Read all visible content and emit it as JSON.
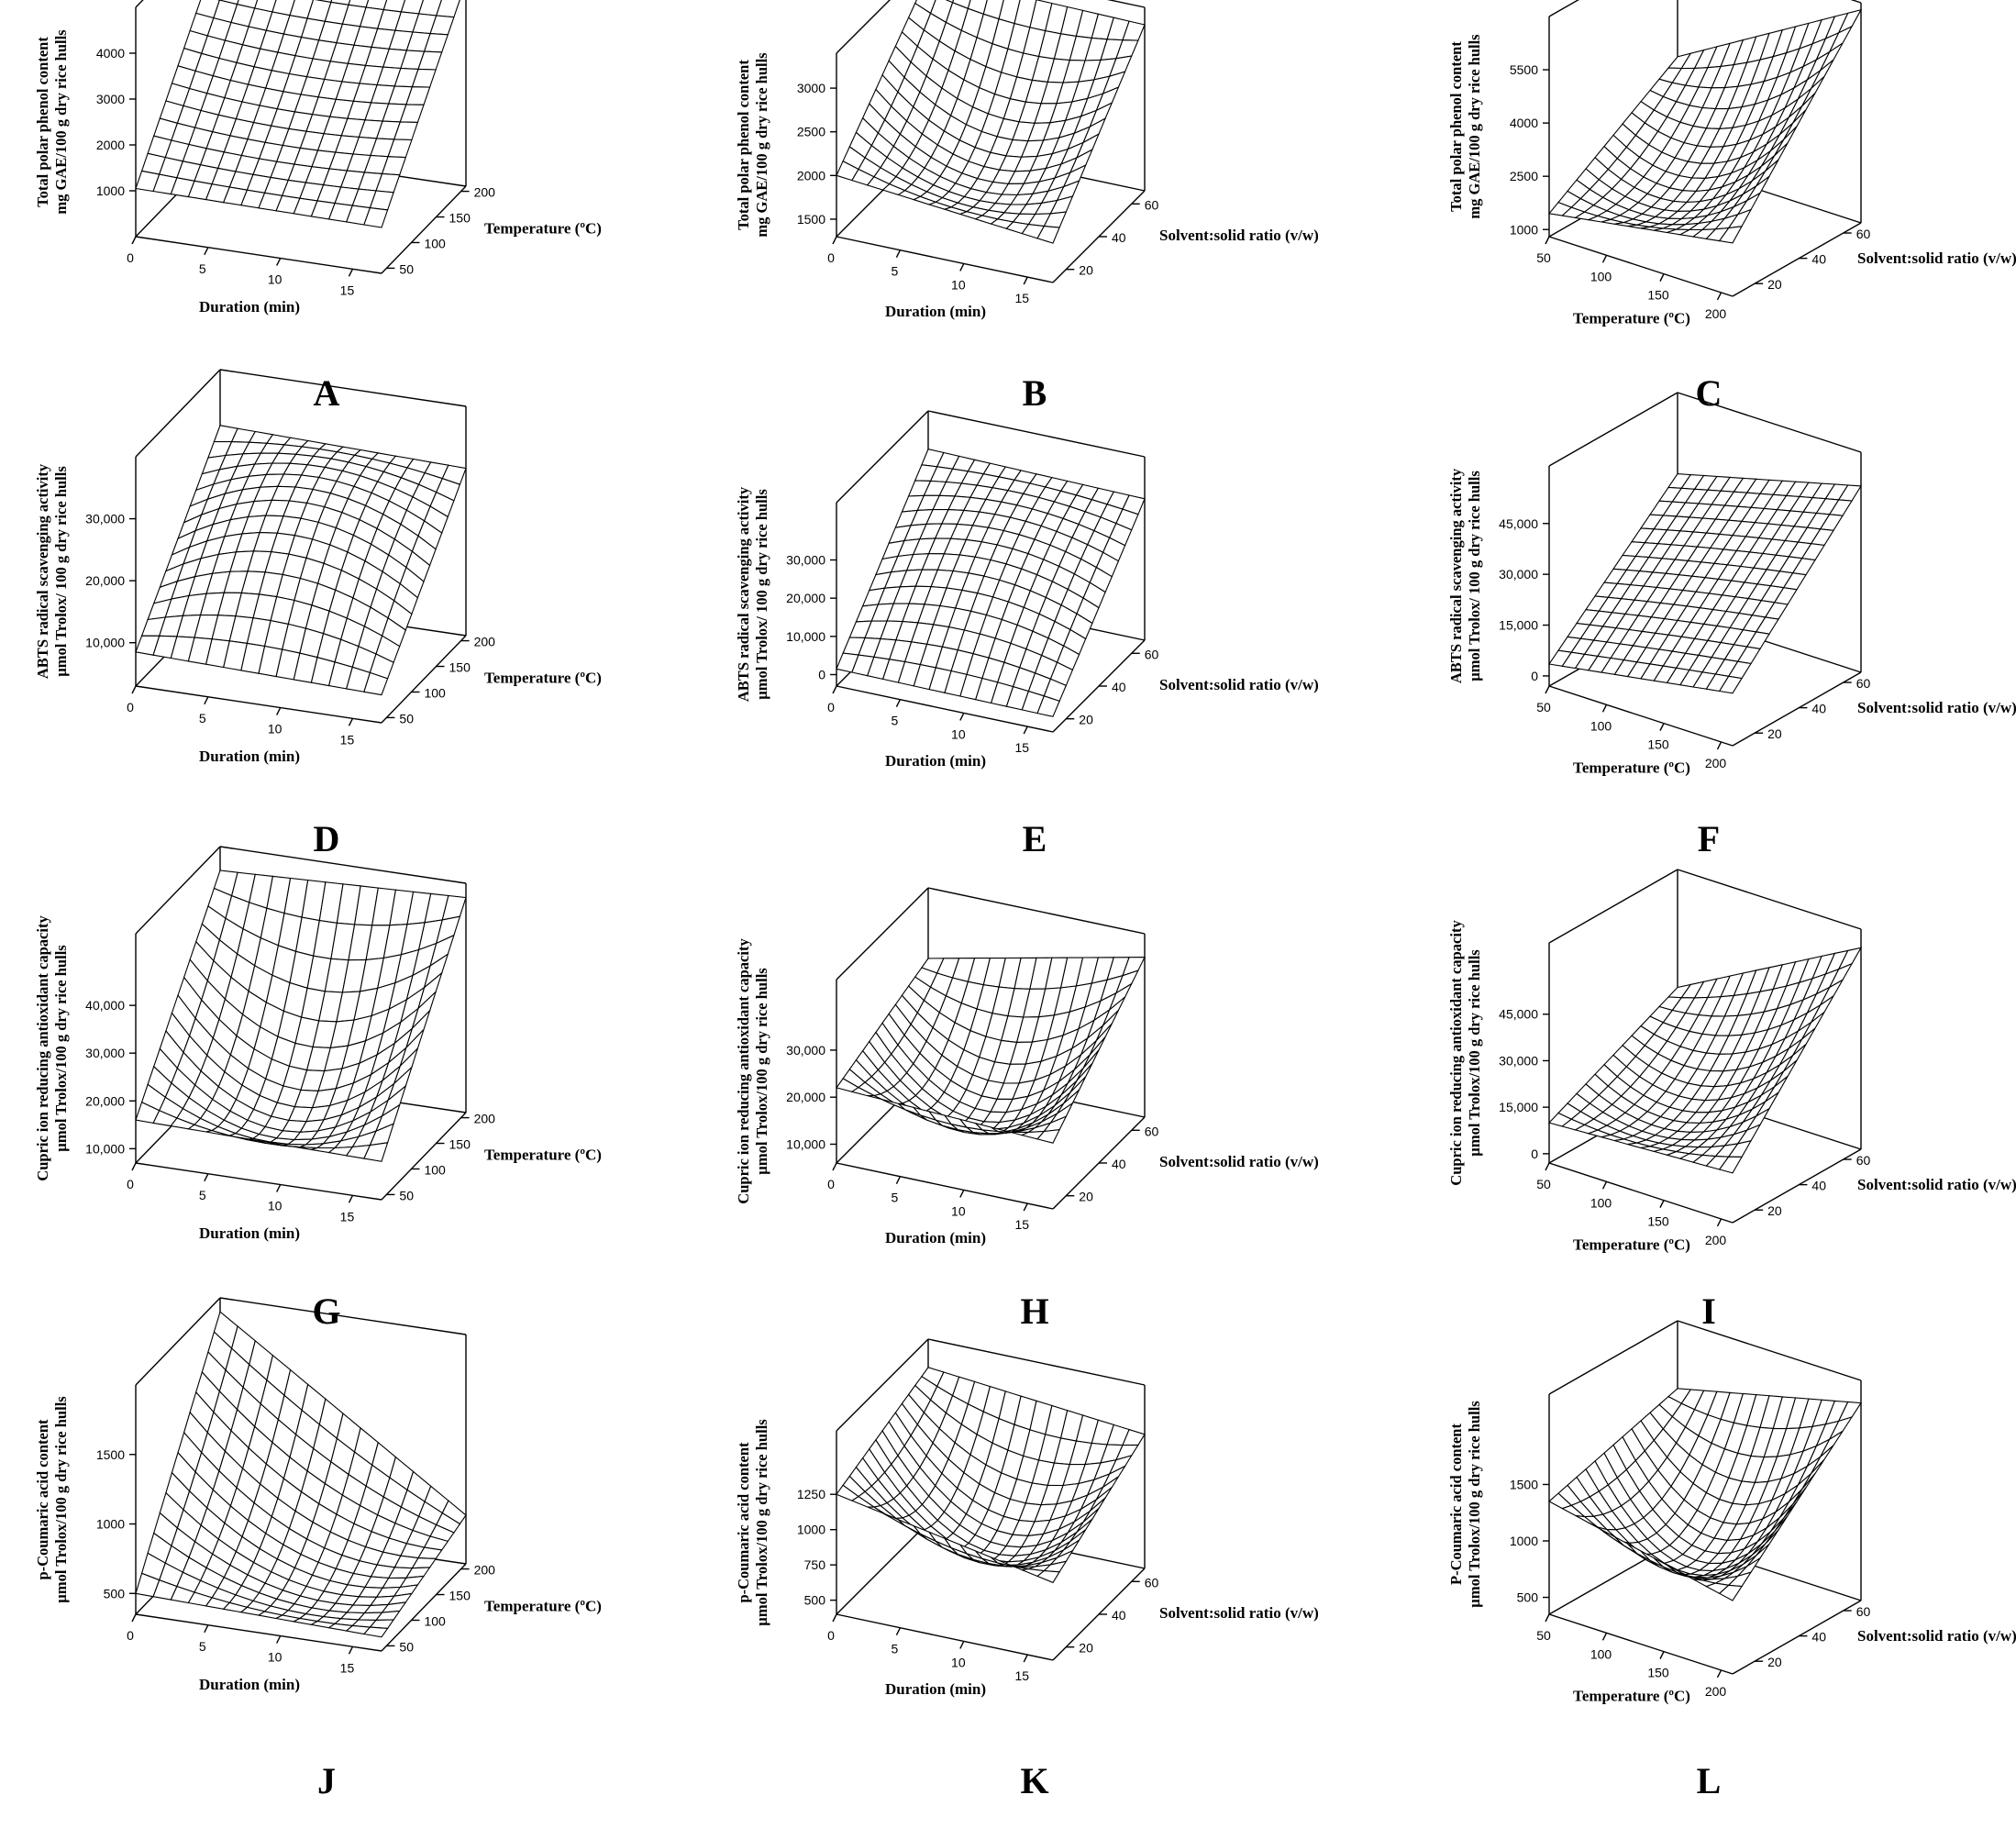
{
  "figure": {
    "letters": [
      "A",
      "B",
      "C",
      "D",
      "E",
      "F",
      "G",
      "H",
      "I",
      "J",
      "K",
      "L"
    ]
  },
  "chart_data": [
    {
      "panel": "A",
      "type": "surface",
      "view": "duration_temperature",
      "x": {
        "label": "Duration (min)",
        "range": [
          0,
          17
        ],
        "ticks": [
          "0",
          "5",
          "10",
          "15"
        ],
        "tick_values": [
          0,
          5,
          10,
          15
        ]
      },
      "y": {
        "label": "Temperature (ºC)",
        "range": [
          40,
          210
        ],
        "ticks": [
          "50",
          "100",
          "150",
          "200"
        ],
        "tick_values": [
          50,
          100,
          150,
          200
        ]
      },
      "z": {
        "label_lines": [
          "Total polar phenol content",
          "mg GAE/100 g dry rice hulls"
        ],
        "range": [
          0,
          5000
        ],
        "ticks": [
          "1000",
          "2000",
          "3000",
          "4000"
        ],
        "tick_values": [
          1000,
          2000,
          3000,
          4000
        ]
      },
      "surface_corners": {
        "x0y0": 1050,
        "x1y0": 1000,
        "x0y1": 4500,
        "x1y1": 4450,
        "center": 2550
      }
    },
    {
      "panel": "B",
      "type": "surface",
      "view": "duration_ratio",
      "x": {
        "label": "Duration (min)",
        "range": [
          0,
          17
        ],
        "ticks": [
          "0",
          "5",
          "10",
          "15"
        ],
        "tick_values": [
          0,
          5,
          10,
          15
        ]
      },
      "y": {
        "label": "Solvent:solid ratio (v/w)",
        "range": [
          12,
          68
        ],
        "ticks": [
          "20",
          "40",
          "60"
        ],
        "tick_values": [
          20,
          40,
          60
        ]
      },
      "z": {
        "label_lines": [
          "Total polar phenol content",
          "mg GAE/100 g dry rice hulls"
        ],
        "range": [
          1300,
          3400
        ],
        "ticks": [
          "1500",
          "2000",
          "2500",
          "3000"
        ],
        "tick_values": [
          1500,
          2000,
          2500,
          3000
        ]
      },
      "surface_corners": {
        "x0y0": 2000,
        "x1y0": 1750,
        "x0y1": 3250,
        "x1y1": 3200,
        "center": 2000
      }
    },
    {
      "panel": "C",
      "type": "surface",
      "view": "temperature_ratio",
      "x": {
        "label": "Temperature (ºC)",
        "range": [
          50,
          210
        ],
        "ticks": [
          "50",
          "100",
          "150",
          "200"
        ],
        "tick_values": [
          50,
          100,
          150,
          200
        ]
      },
      "y": {
        "label": "Solvent:solid ratio (v/w)",
        "range": [
          10,
          68
        ],
        "ticks": [
          "20",
          "40",
          "60"
        ],
        "tick_values": [
          20,
          40,
          60
        ]
      },
      "z": {
        "label_lines": [
          "Total polar phenol content",
          "mg GAE/100 g dry rice hulls"
        ],
        "range": [
          800,
          7000
        ],
        "ticks": [
          "1000",
          "2500",
          "4000",
          "5500"
        ],
        "tick_values": [
          1000,
          2500,
          4000,
          5500
        ]
      },
      "surface_corners": {
        "x0y0": 1450,
        "x1y0": 2300,
        "x0y1": 3800,
        "x1y1": 6800,
        "center": 2250
      }
    },
    {
      "panel": "D",
      "type": "surface",
      "view": "duration_temperature",
      "x": {
        "label": "Duration (min)",
        "range": [
          0,
          17
        ],
        "ticks": [
          "0",
          "5",
          "10",
          "15"
        ],
        "tick_values": [
          0,
          5,
          10,
          15
        ]
      },
      "y": {
        "label": "Temperature (ºC)",
        "range": [
          40,
          210
        ],
        "ticks": [
          "50",
          "100",
          "150",
          "200"
        ],
        "tick_values": [
          50,
          100,
          150,
          200
        ]
      },
      "z": {
        "label_lines": [
          "ABTS radical scavenging activity",
          "µmol Trolox/ 100 g dry rice hulls"
        ],
        "range": [
          3000,
          40000
        ],
        "ticks": [
          "10,000",
          "20,000",
          "30,000"
        ],
        "tick_values": [
          10000,
          20000,
          30000
        ]
      },
      "surface_corners": {
        "x0y0": 8500,
        "x1y0": 7500,
        "x0y1": 31000,
        "x1y1": 30000,
        "center": 26000
      }
    },
    {
      "panel": "E",
      "type": "surface",
      "view": "duration_ratio",
      "x": {
        "label": "Duration (min)",
        "range": [
          0,
          17
        ],
        "ticks": [
          "0",
          "5",
          "10",
          "15"
        ],
        "tick_values": [
          0,
          5,
          10,
          15
        ]
      },
      "y": {
        "label": "Solvent:solid ratio (v/w)",
        "range": [
          12,
          68
        ],
        "ticks": [
          "20",
          "40",
          "60"
        ],
        "tick_values": [
          20,
          40,
          60
        ]
      },
      "z": {
        "label_lines": [
          "ABTS radical scavenging activity",
          "µmol Trolox/ 100 g dry rice hulls"
        ],
        "range": [
          -3000,
          45000
        ],
        "ticks": [
          "0",
          "10,000",
          "20,000",
          "30,000"
        ],
        "tick_values": [
          0,
          10000,
          20000,
          30000
        ]
      },
      "surface_corners": {
        "x0y0": 1500,
        "x1y0": 1000,
        "x0y1": 35000,
        "x1y1": 34000,
        "center": 24000
      }
    },
    {
      "panel": "F",
      "type": "surface",
      "view": "temperature_ratio",
      "x": {
        "label": "Temperature (ºC)",
        "range": [
          50,
          210
        ],
        "ticks": [
          "50",
          "100",
          "150",
          "200"
        ],
        "tick_values": [
          50,
          100,
          150,
          200
        ]
      },
      "y": {
        "label": "Solvent:solid ratio (v/w)",
        "range": [
          10,
          68
        ],
        "ticks": [
          "20",
          "40",
          "60"
        ],
        "tick_values": [
          20,
          40,
          60
        ]
      },
      "z": {
        "label_lines": [
          "ABTS radical scavenging activity",
          "µmol Trolox/ 100 g dry rice hulls"
        ],
        "range": [
          -3000,
          62000
        ],
        "ticks": [
          "0",
          "15,000",
          "30,000",
          "45,000"
        ],
        "tick_values": [
          0,
          15000,
          30000,
          45000
        ]
      },
      "surface_corners": {
        "x0y0": 3500,
        "x1y0": 12500,
        "x0y1": 38000,
        "x1y1": 52000,
        "center": 27000
      }
    },
    {
      "panel": "G",
      "type": "surface",
      "view": "duration_temperature",
      "x": {
        "label": "Duration (min)",
        "range": [
          0,
          17
        ],
        "ticks": [
          "0",
          "5",
          "10",
          "15"
        ],
        "tick_values": [
          0,
          5,
          10,
          15
        ]
      },
      "y": {
        "label": "Temperature (ºC)",
        "range": [
          40,
          210
        ],
        "ticks": [
          "50",
          "100",
          "150",
          "200"
        ],
        "tick_values": [
          50,
          100,
          150,
          200
        ]
      },
      "z": {
        "label_lines": [
          "Cupric ion reducing antioxidant capacity",
          "µmol Trolox/100 g dry rice hulls"
        ],
        "range": [
          7000,
          55000
        ],
        "ticks": [
          "10,000",
          "20,000",
          "30,000",
          "40,000"
        ],
        "tick_values": [
          10000,
          20000,
          30000,
          40000
        ]
      },
      "surface_corners": {
        "x0y0": 16000,
        "x1y0": 15000,
        "x0y1": 50000,
        "x1y1": 52000,
        "center": 17000
      }
    },
    {
      "panel": "H",
      "type": "surface",
      "view": "duration_ratio",
      "x": {
        "label": "Duration (min)",
        "range": [
          0,
          17
        ],
        "ticks": [
          "0",
          "5",
          "10",
          "15"
        ],
        "tick_values": [
          0,
          5,
          10,
          15
        ]
      },
      "y": {
        "label": "Solvent:solid ratio (v/w)",
        "range": [
          12,
          68
        ],
        "ticks": [
          "20",
          "40",
          "60"
        ],
        "tick_values": [
          20,
          40,
          60
        ]
      },
      "z": {
        "label_lines": [
          "Cupric ion reducing antioxidant capacity",
          "µmol Trolox/100 g dry rice hulls"
        ],
        "range": [
          6000,
          45000
        ],
        "ticks": [
          "10,000",
          "20,000",
          "30,000"
        ],
        "tick_values": [
          10000,
          20000,
          30000
        ]
      },
      "surface_corners": {
        "x0y0": 22000,
        "x1y0": 20000,
        "x0y1": 30000,
        "x1y1": 40000,
        "center": 12000
      }
    },
    {
      "panel": "I",
      "type": "surface",
      "view": "temperature_ratio",
      "x": {
        "label": "Temperature (ºC)",
        "range": [
          50,
          210
        ],
        "ticks": [
          "50",
          "100",
          "150",
          "200"
        ],
        "tick_values": [
          50,
          100,
          150,
          200
        ]
      },
      "y": {
        "label": "Solvent:solid ratio (v/w)",
        "range": [
          10,
          68
        ],
        "ticks": [
          "20",
          "40",
          "60"
        ],
        "tick_values": [
          20,
          40,
          60
        ]
      },
      "z": {
        "label_lines": [
          "Cupric ion reducing antioxidant capacity",
          "µmol Trolox/100 g dry rice hulls"
        ],
        "range": [
          -3000,
          68000
        ],
        "ticks": [
          "0",
          "15,000",
          "30,000",
          "45,000"
        ],
        "tick_values": [
          0,
          15000,
          30000,
          45000
        ]
      },
      "surface_corners": {
        "x0y0": 10000,
        "x1y0": 13000,
        "x0y1": 30000,
        "x1y1": 62000,
        "center": 15000
      }
    },
    {
      "panel": "J",
      "type": "surface",
      "view": "duration_temperature",
      "x": {
        "label": "Duration (min)",
        "range": [
          0,
          17
        ],
        "ticks": [
          "0",
          "5",
          "10",
          "15"
        ],
        "tick_values": [
          0,
          5,
          10,
          15
        ]
      },
      "y": {
        "label": "Temperature (ºC)",
        "range": [
          40,
          210
        ],
        "ticks": [
          "50",
          "100",
          "150",
          "200"
        ],
        "tick_values": [
          50,
          100,
          150,
          200
        ]
      },
      "z": {
        "label_lines": [
          "p-Coumaric acid content",
          "µmol Trolox/100 g dry rice hulls"
        ],
        "range": [
          350,
          2000
        ],
        "ticks": [
          "500",
          "1000",
          "1500"
        ],
        "tick_values": [
          500,
          1000,
          1500
        ]
      },
      "surface_corners": {
        "x0y0": 500,
        "x1y0": 450,
        "x0y1": 1900,
        "x1y1": 700,
        "center": 600
      }
    },
    {
      "panel": "K",
      "type": "surface",
      "view": "duration_ratio",
      "x": {
        "label": "Duration (min)",
        "range": [
          0,
          17
        ],
        "ticks": [
          "0",
          "5",
          "10",
          "15"
        ],
        "tick_values": [
          0,
          5,
          10,
          15
        ]
      },
      "y": {
        "label": "Solvent:solid ratio (v/w)",
        "range": [
          12,
          68
        ],
        "ticks": [
          "20",
          "40",
          "60"
        ],
        "tick_values": [
          20,
          40,
          60
        ]
      },
      "z": {
        "label_lines": [
          "p-Coumaric acid content",
          "µmol Trolox/100 g dry rice hulls"
        ],
        "range": [
          400,
          1700
        ],
        "ticks": [
          "500",
          "750",
          "1000",
          "1250"
        ],
        "tick_values": [
          500,
          750,
          1000,
          1250
        ]
      },
      "surface_corners": {
        "x0y0": 1250,
        "x1y0": 950,
        "x0y1": 1500,
        "x1y1": 1350,
        "center": 750
      }
    },
    {
      "panel": "L",
      "type": "surface",
      "view": "temperature_ratio",
      "x": {
        "label": "Temperature (ºC)",
        "range": [
          50,
          210
        ],
        "ticks": [
          "50",
          "100",
          "150",
          "200"
        ],
        "tick_values": [
          50,
          100,
          150,
          200
        ]
      },
      "y": {
        "label": "Solvent:solid ratio (v/w)",
        "range": [
          10,
          68
        ],
        "ticks": [
          "20",
          "40",
          "60"
        ],
        "tick_values": [
          20,
          40,
          60
        ]
      },
      "z": {
        "label_lines": [
          "P-Coumaric acid content",
          "µmol Trolox/100 g dry rice hulls"
        ],
        "range": [
          350,
          2300
        ],
        "ticks": [
          "500",
          "1000",
          "1500"
        ],
        "tick_values": [
          500,
          1000,
          1500
        ]
      },
      "surface_corners": {
        "x0y0": 1350,
        "x1y0": 1000,
        "x0y1": 1700,
        "x1y1": 2100,
        "center": 850
      }
    }
  ]
}
